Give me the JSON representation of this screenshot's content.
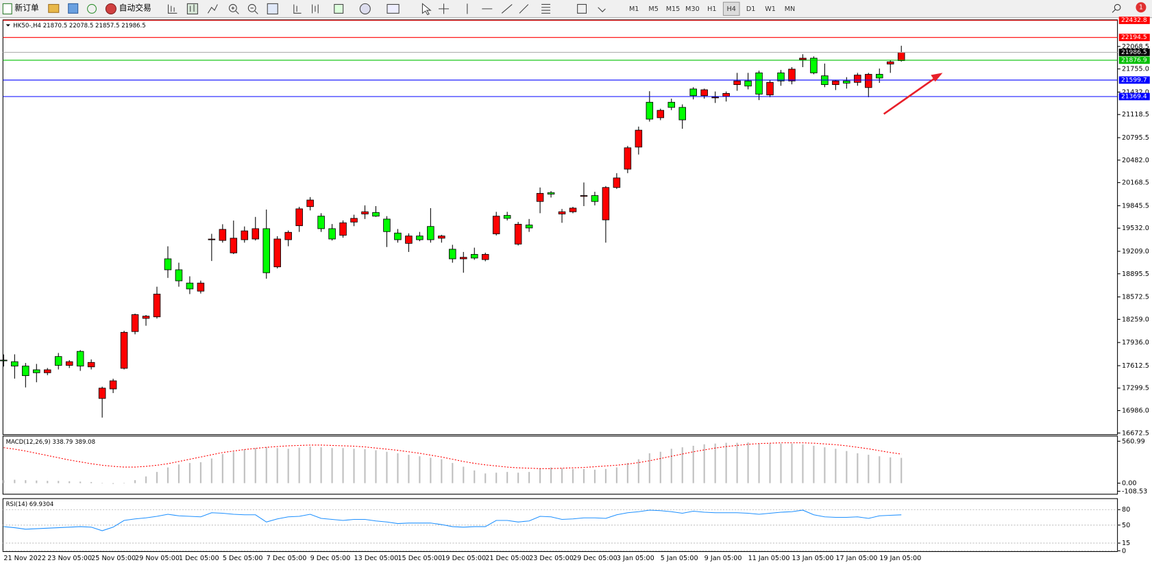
{
  "toolbar": {
    "new_order": "新订单",
    "auto_trading": "自动交易",
    "timeframes": [
      "M1",
      "M5",
      "M15",
      "M30",
      "H1",
      "H4",
      "D1",
      "W1",
      "MN"
    ],
    "active_timeframe": "H4",
    "notification_count": 1
  },
  "chart_data": [
    {
      "type": "candlestick",
      "title": "HK50-,H4  21870.5 22078.5 21857.5 21986.5",
      "categories": [
        "21 Nov 2022",
        null,
        null,
        null,
        "23 Nov 05:00",
        null,
        null,
        null,
        "25 Nov 05:00",
        null,
        null,
        null,
        "29 Nov 05:00",
        null,
        null,
        null,
        "1 Dec 05:00",
        null,
        null,
        null,
        "5 Dec 05:00",
        null,
        null,
        null,
        "7 Dec 05:00",
        null,
        null,
        null,
        "9 Dec 05:00",
        null,
        null,
        null,
        "13 Dec 05:00",
        null,
        null,
        null,
        "15 Dec 05:00",
        null,
        null,
        null,
        "19 Dec 05:00",
        null,
        null,
        null,
        "21 Dec 05:00",
        null,
        null,
        null,
        "23 Dec 05:00",
        null,
        null,
        null,
        "29 Dec 05:00",
        null,
        null,
        null,
        "3 Jan 05:00",
        null,
        null,
        null,
        "5 Jan 05:00",
        null,
        null,
        null,
        "9 Jan 05:00",
        null,
        null,
        null,
        "11 Jan 05:00",
        null,
        null,
        null,
        "13 Jan 05:00",
        null,
        null,
        null,
        "17 Jan 05:00",
        null,
        null,
        null,
        "19 Jan 05:00",
        null,
        null
      ],
      "open": [
        17690,
        17668,
        17607,
        17555,
        17514,
        17740,
        17617,
        17812,
        17596,
        17155,
        17288,
        17576,
        18089,
        18273,
        18294,
        19104,
        18951,
        18766,
        18653,
        19371,
        19361,
        19187,
        19371,
        19381,
        19525,
        18992,
        19371,
        19566,
        19833,
        19700,
        19525,
        19433,
        19617,
        19730,
        19751,
        19659,
        19464,
        19320,
        19423,
        19556,
        19392,
        19238,
        19104,
        19166,
        19094,
        19453,
        19710,
        19310,
        19576,
        19905,
        20028,
        19730,
        19761,
        19977,
        19987,
        19648,
        20100,
        20356,
        20664,
        21290,
        21074,
        21290,
        21218,
        21475,
        21382,
        21351,
        21372,
        21536,
        21587,
        21700,
        21392,
        21700,
        21587,
        21885,
        21905,
        21659,
        21536,
        21587,
        21567,
        21495,
        21680,
        21823,
        21870.5
      ],
      "high": [
        17770,
        17771,
        17650,
        17637,
        17580,
        17790,
        17690,
        17830,
        17700,
        17320,
        17430,
        18100,
        18340,
        18320,
        18715,
        19279,
        19050,
        18860,
        18800,
        19453,
        19587,
        19638,
        19556,
        19689,
        19792,
        19420,
        19500,
        19830,
        19966,
        19741,
        19590,
        19640,
        19720,
        19850,
        19840,
        19700,
        19520,
        19460,
        19480,
        19812,
        19440,
        19300,
        19200,
        19260,
        19190,
        19760,
        19760,
        19620,
        19660,
        20100,
        20050,
        19800,
        19830,
        20170,
        20040,
        20120,
        20300,
        20680,
        20950,
        21444,
        21200,
        21340,
        21260,
        21500,
        21480,
        21440,
        21440,
        21700,
        21700,
        21730,
        21600,
        21740,
        21780,
        21960,
        21930,
        21830,
        21600,
        21640,
        21700,
        21700,
        21760,
        21880,
        22078.5
      ],
      "low": [
        17600,
        17432,
        17309,
        17381,
        17480,
        17560,
        17580,
        17540,
        17560,
        16888,
        17230,
        17560,
        18050,
        18170,
        18270,
        18838,
        18715,
        18612,
        18620,
        19074,
        19330,
        19170,
        19330,
        19360,
        18827,
        18970,
        19280,
        19480,
        19780,
        19480,
        19360,
        19400,
        19560,
        19660,
        19690,
        19269,
        19330,
        19200,
        19350,
        19330,
        19330,
        19050,
        18910,
        19090,
        19070,
        19430,
        19640,
        19290,
        19480,
        19741,
        19960,
        19607,
        19740,
        19840,
        19850,
        19330,
        20080,
        20300,
        20560,
        21020,
        21040,
        21180,
        20920,
        21330,
        21340,
        21280,
        21300,
        21450,
        21470,
        21320,
        21360,
        21520,
        21540,
        21780,
        21680,
        21500,
        21460,
        21480,
        21520,
        21360,
        21560,
        21700,
        21857.5
      ],
      "close": [
        17680,
        17607,
        17473,
        17514,
        17555,
        17617,
        17668,
        17607,
        17658,
        17299,
        17401,
        18078,
        18325,
        18304,
        18612,
        18951,
        18797,
        18684,
        18766,
        19380,
        19515,
        19392,
        19494,
        19525,
        18910,
        19381,
        19474,
        19802,
        19925,
        19525,
        19381,
        19607,
        19669,
        19761,
        19700,
        19484,
        19371,
        19423,
        19371,
        19371,
        19423,
        19104,
        19125,
        19115,
        19166,
        19700,
        19669,
        19587,
        19535,
        20018,
        20007,
        19761,
        19812,
        19987,
        19905,
        20100,
        20233,
        20654,
        20900,
        21054,
        21177,
        21218,
        21044,
        21382,
        21464,
        21362,
        21413,
        21587,
        21516,
        21403,
        21567,
        21587,
        21752,
        21905,
        21700,
        21536,
        21587,
        21557,
        21669,
        21680,
        21628,
        21854,
        21986.5
      ],
      "up_color": "#ff0000",
      "down_color": "#00ff00",
      "ylim": [
        16650,
        22440
      ],
      "yticks": [
        16672.5,
        {
          "value": 16986,
          "label": "16986.0"
        },
        17299.5,
        17612.5,
        {
          "value": 17936,
          "label": "17936.0"
        },
        {
          "value": 18259,
          "label": "18259.0"
        },
        18572.5,
        18895.5,
        {
          "value": 19209,
          "label": "19209.0"
        },
        {
          "value": 19532,
          "label": "19532.0"
        },
        19845.5,
        20168.5,
        {
          "value": 20482,
          "label": "20482.0"
        },
        20795.5,
        21118.5,
        {
          "value": 21432,
          "label": "21432.0"
        },
        {
          "value": 21755,
          "label": "21755.0"
        },
        22068.5
      ],
      "levels": [
        {
          "value": 22432.8,
          "color": "#ff0000"
        },
        {
          "value": 22194.5,
          "color": "#ff0000"
        },
        {
          "value": 21986.5,
          "color": "#000000"
        },
        {
          "value": 21876.9,
          "color": "#00c000"
        },
        {
          "value": 21599.7,
          "color": "#0000ff"
        },
        {
          "value": 21369.4,
          "color": "#0000ff"
        }
      ]
    },
    {
      "type": "macd",
      "title": "MACD(12,26,9) 338.79 389.08",
      "histogram": [
        40,
        45,
        40,
        35,
        30,
        30,
        25,
        20,
        15,
        5,
        -10,
        5,
        40,
        90,
        150,
        210,
        250,
        270,
        280,
        330,
        390,
        420,
        450,
        470,
        480,
        470,
        460,
        475,
        490,
        480,
        470,
        470,
        460,
        455,
        440,
        420,
        400,
        380,
        360,
        340,
        320,
        270,
        220,
        170,
        130,
        140,
        150,
        140,
        150,
        200,
        210,
        200,
        190,
        190,
        180,
        190,
        210,
        270,
        320,
        400,
        420,
        460,
        480,
        500,
        520,
        530,
        540,
        540,
        545,
        530,
        530,
        530,
        530,
        520,
        500,
        480,
        460,
        430,
        400,
        380,
        360,
        345,
        338.79
      ],
      "signal": [
        475,
        455,
        430,
        400,
        370,
        340,
        310,
        285,
        260,
        240,
        225,
        215,
        215,
        225,
        240,
        260,
        290,
        320,
        350,
        380,
        410,
        430,
        450,
        465,
        480,
        490,
        500,
        505,
        510,
        510,
        505,
        500,
        495,
        485,
        470,
        455,
        440,
        420,
        400,
        375,
        350,
        320,
        290,
        265,
        245,
        230,
        215,
        205,
        200,
        195,
        195,
        200,
        205,
        210,
        220,
        230,
        240,
        255,
        275,
        300,
        330,
        360,
        390,
        420,
        445,
        470,
        490,
        505,
        520,
        530,
        535,
        540,
        540,
        540,
        535,
        525,
        515,
        500,
        480,
        460,
        435,
        410,
        389.08
      ],
      "histogram_color": "#c0c0c0",
      "signal_color": "#ff0000",
      "ylim": [
        -108.53,
        560.99
      ],
      "yticks": [
        560.99,
        {
          "value": 0,
          "label": "0.00"
        },
        -108.53
      ]
    },
    {
      "type": "line",
      "title": "RSI(14) 69.9304",
      "values": [
        47,
        45,
        42,
        43,
        44,
        45,
        46,
        47,
        46,
        39,
        46,
        59,
        62,
        64,
        67,
        71,
        68,
        67,
        66,
        74,
        73,
        71,
        70,
        70,
        56,
        62,
        66,
        67,
        71,
        63,
        61,
        59,
        61,
        61,
        58,
        56,
        53,
        54,
        54,
        54,
        51,
        47,
        46,
        47,
        47,
        59,
        59,
        56,
        58,
        67,
        66,
        61,
        62,
        64,
        64,
        63,
        70,
        74,
        76,
        79,
        78,
        76,
        73,
        77,
        75,
        74,
        74,
        74,
        73,
        71,
        73,
        75,
        76,
        79,
        70,
        66,
        65,
        65,
        66,
        63,
        68,
        69,
        69.9304
      ],
      "color": "#1e90ff",
      "ylim": [
        0,
        100
      ],
      "yticks": [
        80,
        50,
        15,
        0
      ]
    }
  ]
}
